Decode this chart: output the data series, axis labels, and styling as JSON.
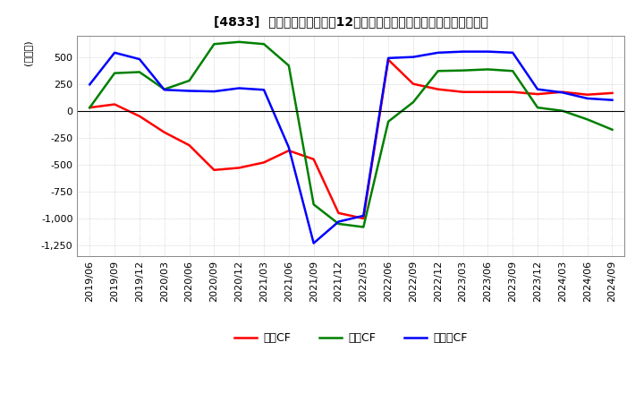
{
  "title": "[4833]  キャッシュフローの12か月移動合計の対前年同期増減額の推移",
  "ylabel": "(百万円)",
  "ylim": [
    -1350,
    700
  ],
  "yticks": [
    500,
    250,
    0,
    -250,
    -500,
    -750,
    -1000,
    -1250
  ],
  "background_color": "#ffffff",
  "grid_color": "#aaaaaa",
  "dates": [
    "2019/06",
    "2019/09",
    "2019/12",
    "2020/03",
    "2020/06",
    "2020/09",
    "2020/12",
    "2021/03",
    "2021/06",
    "2021/09",
    "2021/12",
    "2022/03",
    "2022/06",
    "2022/09",
    "2022/12",
    "2023/03",
    "2023/06",
    "2023/09",
    "2023/12",
    "2024/03",
    "2024/06",
    "2024/09"
  ],
  "operating_cf": [
    30,
    60,
    -50,
    -200,
    -320,
    -550,
    -530,
    -480,
    -370,
    -450,
    -950,
    -1000,
    475,
    250,
    200,
    175,
    175,
    175,
    155,
    175,
    150,
    165
  ],
  "investing_cf": [
    30,
    350,
    360,
    200,
    280,
    620,
    640,
    620,
    420,
    -870,
    -1050,
    -1080,
    -100,
    80,
    370,
    375,
    385,
    370,
    30,
    0,
    -80,
    -175
  ],
  "free_cf": [
    245,
    540,
    480,
    195,
    185,
    180,
    210,
    195,
    -340,
    -1230,
    -1030,
    -975,
    490,
    500,
    540,
    550,
    550,
    540,
    200,
    170,
    115,
    100
  ],
  "operating_color": "#ff0000",
  "investing_color": "#008000",
  "free_color": "#0000ff",
  "line_width": 1.8,
  "legend_labels": [
    "営業CF",
    "投資CF",
    "フリーCF"
  ]
}
